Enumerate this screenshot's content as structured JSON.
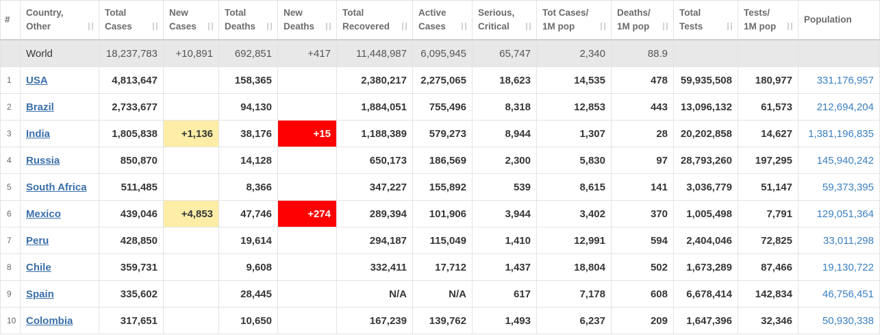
{
  "table": {
    "headers": [
      [
        "#"
      ],
      [
        "Country,",
        "Other"
      ],
      [
        "Total",
        "Cases"
      ],
      [
        "New",
        "Cases"
      ],
      [
        "Total",
        "Deaths"
      ],
      [
        "New",
        "Deaths"
      ],
      [
        "Total",
        "Recovered"
      ],
      [
        "Active",
        "Cases"
      ],
      [
        "Serious,",
        "Critical"
      ],
      [
        "Tot Cases/",
        "1M pop"
      ],
      [
        "Deaths/",
        "1M pop"
      ],
      [
        "Total",
        "Tests"
      ],
      [
        "Tests/",
        "1M pop"
      ],
      [
        "Population"
      ]
    ],
    "world": [
      null,
      "World",
      "18,237,783",
      "+10,891",
      "692,851",
      "+417",
      "11,448,987",
      "6,095,945",
      "65,747",
      "2,340",
      "88.9",
      null,
      null,
      null
    ],
    "rows": [
      [
        "1",
        "USA",
        "4,813,647",
        null,
        "158,365",
        null,
        "2,380,217",
        "2,275,065",
        "18,623",
        "14,535",
        "478",
        "59,935,508",
        "180,977",
        "331,176,957"
      ],
      [
        "2",
        "Brazil",
        "2,733,677",
        null,
        "94,130",
        null,
        "1,884,051",
        "755,496",
        "8,318",
        "12,853",
        "443",
        "13,096,132",
        "61,573",
        "212,694,204"
      ],
      [
        "3",
        "India",
        "1,805,838",
        "+1,136",
        "38,176",
        "+15",
        "1,188,389",
        "579,273",
        "8,944",
        "1,307",
        "28",
        "20,202,858",
        "14,627",
        "1,381,196,835"
      ],
      [
        "4",
        "Russia",
        "850,870",
        null,
        "14,128",
        null,
        "650,173",
        "186,569",
        "2,300",
        "5,830",
        "97",
        "28,793,260",
        "197,295",
        "145,940,242"
      ],
      [
        "5",
        "South Africa",
        "511,485",
        null,
        "8,366",
        null,
        "347,227",
        "155,892",
        "539",
        "8,615",
        "141",
        "3,036,779",
        "51,147",
        "59,373,395"
      ],
      [
        "6",
        "Mexico",
        "439,046",
        "+4,853",
        "47,746",
        "+274",
        "289,394",
        "101,906",
        "3,944",
        "3,402",
        "370",
        "1,005,498",
        "7,791",
        "129,051,364"
      ],
      [
        "7",
        "Peru",
        "428,850",
        null,
        "19,614",
        null,
        "294,187",
        "115,049",
        "1,410",
        "12,991",
        "594",
        "2,404,046",
        "72,825",
        "33,011,298"
      ],
      [
        "8",
        "Chile",
        "359,731",
        null,
        "9,608",
        null,
        "332,411",
        "17,712",
        "1,437",
        "18,804",
        "502",
        "1,673,289",
        "87,466",
        "19,130,722"
      ],
      [
        "9",
        "Spain",
        "335,602",
        null,
        "28,445",
        null,
        "N/A",
        "N/A",
        "617",
        "7,178",
        "608",
        "6,678,414",
        "142,834",
        "46,756,451"
      ],
      [
        "10",
        "Colombia",
        "317,651",
        null,
        "10,650",
        null,
        "167,239",
        "139,762",
        "1,493",
        "6,237",
        "209",
        "1,647,396",
        "32,346",
        "50,930,338"
      ]
    ]
  }
}
